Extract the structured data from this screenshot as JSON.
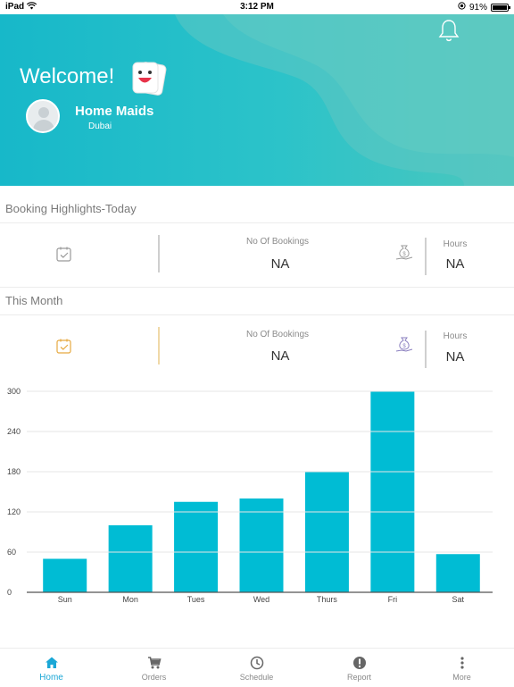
{
  "status_bar": {
    "carrier": "iPad",
    "time": "3:12 PM",
    "battery": "91%"
  },
  "header": {
    "welcome": "Welcome!",
    "user_name": "Home Maids",
    "location": "Dubai"
  },
  "today": {
    "title": "Booking Highlights-Today",
    "bookings_label": "No Of Bookings",
    "bookings_value": "NA",
    "hours_label": "Hours",
    "hours_value": "NA"
  },
  "month": {
    "title": "This Month",
    "bookings_label": "No Of Bookings",
    "bookings_value": "NA",
    "hours_label": "Hours",
    "hours_value": "NA"
  },
  "chart_data": {
    "type": "bar",
    "categories": [
      "Sun",
      "Mon",
      "Tues",
      "Wed",
      "Thurs",
      "Fri",
      "Sat"
    ],
    "values": [
      50,
      100,
      135,
      140,
      180,
      300,
      57
    ],
    "yticks": [
      "0",
      "60",
      "120",
      "180",
      "240",
      "300"
    ],
    "ylim": [
      0,
      300
    ],
    "color": "#00bcd4",
    "grid": true
  },
  "tabs": [
    {
      "label": "Home",
      "icon": "home-icon",
      "active": true
    },
    {
      "label": "Orders",
      "icon": "cart-icon",
      "active": false
    },
    {
      "label": "Schedule",
      "icon": "clock-icon",
      "active": false
    },
    {
      "label": "Report",
      "icon": "alert-icon",
      "active": false
    },
    {
      "label": "More",
      "icon": "more-vertical-icon",
      "active": false
    }
  ],
  "colors": {
    "accent": "#17b8c9",
    "tab_active": "#1aa7d6",
    "bar": "#00bcd4"
  }
}
